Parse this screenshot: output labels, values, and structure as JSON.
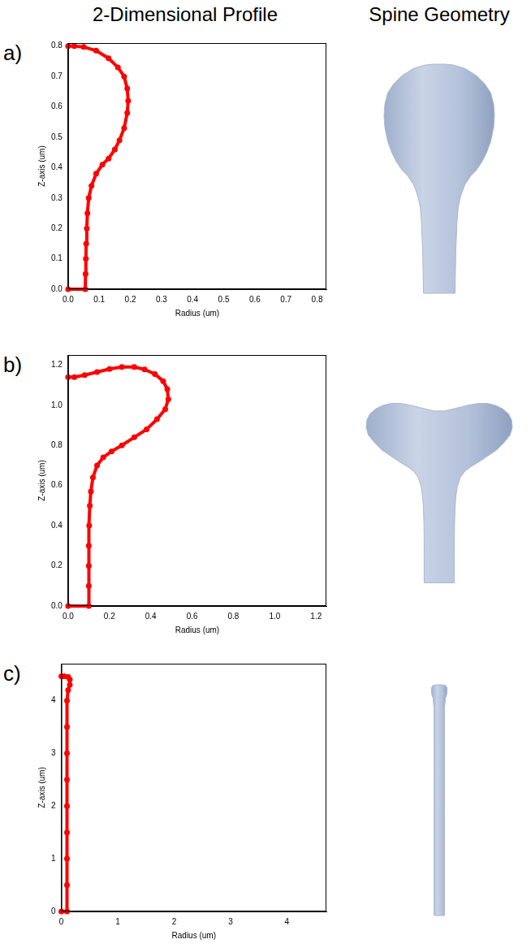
{
  "column_titles": [
    "2-Dimensional Profile",
    "Spine Geometry"
  ],
  "chart_data": [
    {
      "panel": "a)",
      "type": "scatter",
      "x_label": "Radius (um)",
      "y_label": "Z-axis (um)",
      "color": "#ff0000",
      "marker": "circle",
      "line_style": "solid",
      "grid": false,
      "xlim": [
        0,
        0.83
      ],
      "ylim": [
        0,
        0.81
      ],
      "xticks": [
        {
          "value": 0,
          "label": "0.0"
        },
        {
          "value": 0.1,
          "label": "0.1"
        },
        {
          "value": 0.2,
          "label": "0.2"
        },
        {
          "value": 0.3,
          "label": "0.3"
        },
        {
          "value": 0.4,
          "label": "0.4"
        },
        {
          "value": 0.5,
          "label": "0.5"
        },
        {
          "value": 0.6,
          "label": "0.6"
        },
        {
          "value": 0.7,
          "label": "0.7"
        },
        {
          "value": 0.8,
          "label": "0.8"
        }
      ],
      "yticks": [
        {
          "value": 0,
          "label": "0.0"
        },
        {
          "value": 0.1,
          "label": "0.1"
        },
        {
          "value": 0.2,
          "label": "0.2"
        },
        {
          "value": 0.3,
          "label": "0.3"
        },
        {
          "value": 0.4,
          "label": "0.4"
        },
        {
          "value": 0.5,
          "label": "0.5"
        },
        {
          "value": 0.6,
          "label": "0.6"
        },
        {
          "value": 0.7,
          "label": "0.7"
        },
        {
          "value": 0.8,
          "label": "0.8"
        }
      ],
      "x": [
        0,
        0.055,
        0.056,
        0.057,
        0.058,
        0.06,
        0.062,
        0.066,
        0.075,
        0.09,
        0.11,
        0.13,
        0.15,
        0.165,
        0.18,
        0.19,
        0.193,
        0.19,
        0.18,
        0.16,
        0.13,
        0.09,
        0.05,
        0.02,
        0
      ],
      "values": [
        0,
        0,
        0.05,
        0.1,
        0.15,
        0.2,
        0.25,
        0.3,
        0.34,
        0.38,
        0.41,
        0.43,
        0.46,
        0.49,
        0.53,
        0.58,
        0.62,
        0.66,
        0.7,
        0.73,
        0.76,
        0.785,
        0.797,
        0.8,
        0.8
      ]
    },
    {
      "panel": "b)",
      "type": "scatter",
      "x_label": "Radius (um)",
      "y_label": "Z-axis (um)",
      "color": "#ff0000",
      "marker": "circle",
      "line_style": "solid",
      "grid": false,
      "xlim": [
        0,
        1.25
      ],
      "ylim": [
        0,
        1.25
      ],
      "xticks": [
        {
          "value": 0,
          "label": "0.0"
        },
        {
          "value": 0.2,
          "label": "0.2"
        },
        {
          "value": 0.4,
          "label": "0.4"
        },
        {
          "value": 0.6,
          "label": "0.6"
        },
        {
          "value": 0.8,
          "label": "0.8"
        },
        {
          "value": 1,
          "label": "1.0"
        },
        {
          "value": 1.2,
          "label": "1.2"
        }
      ],
      "yticks": [
        {
          "value": 0,
          "label": "0.0"
        },
        {
          "value": 0.2,
          "label": "0.2"
        },
        {
          "value": 0.4,
          "label": "0.4"
        },
        {
          "value": 0.6,
          "label": "0.6"
        },
        {
          "value": 0.8,
          "label": "0.8"
        },
        {
          "value": 1,
          "label": "1.0"
        },
        {
          "value": 1.2,
          "label": "1.2"
        }
      ],
      "x": [
        0,
        0.1,
        0.1,
        0.1,
        0.1,
        0.102,
        0.105,
        0.11,
        0.12,
        0.14,
        0.17,
        0.21,
        0.26,
        0.32,
        0.38,
        0.43,
        0.47,
        0.485,
        0.48,
        0.46,
        0.42,
        0.37,
        0.32,
        0.26,
        0.2,
        0.14,
        0.08,
        0.03,
        0
      ],
      "values": [
        0,
        0,
        0.1,
        0.2,
        0.3,
        0.4,
        0.5,
        0.57,
        0.64,
        0.7,
        0.74,
        0.77,
        0.8,
        0.84,
        0.88,
        0.93,
        0.98,
        1.03,
        1.08,
        1.12,
        1.155,
        1.178,
        1.19,
        1.19,
        1.18,
        1.165,
        1.15,
        1.14,
        1.14
      ]
    },
    {
      "panel": "c)",
      "type": "scatter",
      "x_label": "Radius (um)",
      "y_label": "Z-axis (um)",
      "color": "#ff0000",
      "marker": "circle",
      "line_style": "solid",
      "grid": false,
      "xlim": [
        0,
        4.7
      ],
      "ylim": [
        0,
        4.7
      ],
      "xticks": [
        0,
        1,
        2,
        3,
        4
      ],
      "yticks": [
        0,
        1,
        2,
        3,
        4
      ],
      "x": [
        0,
        0.1,
        0.1,
        0.1,
        0.1,
        0.1,
        0.1,
        0.1,
        0.1,
        0.1,
        0.12,
        0.15,
        0.15,
        0.12,
        0.05,
        0
      ],
      "values": [
        0,
        0,
        0.5,
        1,
        1.5,
        2,
        2.5,
        3,
        3.5,
        4,
        4.2,
        4.3,
        4.4,
        4.45,
        4.46,
        4.46
      ]
    }
  ]
}
